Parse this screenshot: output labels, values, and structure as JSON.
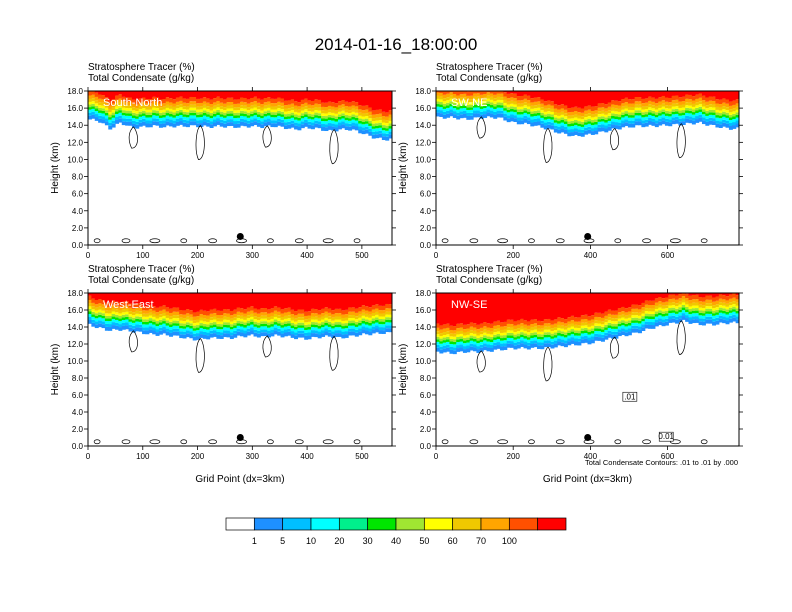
{
  "figure": {
    "title": "2014-01-16_18:00:00",
    "footer_note": "Total Condensate Contours: .01 to .01 by .000"
  },
  "colorbar": {
    "colors": [
      "#ffffff",
      "#1e90ff",
      "#00bfff",
      "#00ffff",
      "#00f08c",
      "#00e600",
      "#a0e632",
      "#ffff00",
      "#f0c800",
      "#ffa500",
      "#ff5000",
      "#ff0000"
    ],
    "labels": [
      "1",
      "5",
      "10",
      "20",
      "30",
      "40",
      "50",
      "60",
      "70",
      "100"
    ]
  },
  "chart_data": [
    {
      "type": "heatmap",
      "region_label": "South-North",
      "title_lines": [
        "Stratosphere Tracer   (%)",
        "Total Condensate   (g/kg)"
      ],
      "xlabel": "",
      "ylabel": "Height (km)",
      "xlim": [
        0,
        555
      ],
      "ylim": [
        0,
        18
      ],
      "xticks": [
        0,
        100,
        200,
        300,
        400,
        500
      ],
      "yticks": [
        0.0,
        2.0,
        4.0,
        6.0,
        8.0,
        10.0,
        12.0,
        14.0,
        16.0,
        18.0
      ],
      "marker_x": 278,
      "tracer_profile": {
        "x": [
          0,
          20,
          40,
          60,
          80,
          100,
          120,
          140,
          160,
          180,
          200,
          220,
          240,
          260,
          280,
          300,
          320,
          340,
          360,
          380,
          400,
          420,
          440,
          460,
          480,
          500,
          520,
          540,
          555
        ],
        "base_km": [
          15.6,
          15.4,
          14.5,
          15.2,
          14.6,
          14.7,
          14.8,
          14.7,
          14.8,
          14.8,
          14.8,
          14.7,
          14.8,
          14.7,
          14.7,
          14.8,
          14.7,
          14.8,
          14.6,
          14.4,
          14.6,
          14.5,
          14.2,
          14.4,
          14.4,
          14.0,
          13.5,
          13.2,
          13.3
        ]
      }
    },
    {
      "type": "heatmap",
      "region_label": "SW-NE",
      "title_lines": [
        "Stratosphere Tracer   (%)",
        "Total Condensate   (g/kg)"
      ],
      "xlabel": "",
      "ylabel": "Height (km)",
      "xlim": [
        0,
        785
      ],
      "ylim": [
        0,
        18
      ],
      "xticks": [
        0,
        200,
        400,
        600
      ],
      "yticks": [
        0.0,
        2.0,
        4.0,
        6.0,
        8.0,
        10.0,
        12.0,
        14.0,
        16.0,
        18.0
      ],
      "marker_x": 393,
      "tracer_profile": {
        "x": [
          0,
          40,
          80,
          120,
          160,
          200,
          240,
          280,
          320,
          360,
          400,
          440,
          480,
          520,
          560,
          600,
          640,
          680,
          720,
          760,
          785
        ],
        "base_km": [
          15.8,
          15.8,
          15.6,
          15.8,
          15.8,
          15.2,
          15.0,
          14.6,
          14.0,
          13.6,
          13.8,
          14.2,
          14.6,
          14.8,
          14.8,
          14.9,
          15.0,
          15.2,
          14.8,
          14.5,
          14.5
        ]
      }
    },
    {
      "type": "heatmap",
      "region_label": "West-East",
      "title_lines": [
        "Stratosphere Tracer   (%)",
        "Total Condensate   (g/kg)"
      ],
      "xlabel": "Grid Point (dx=3km)",
      "ylabel": "Height (km)",
      "xlim": [
        0,
        555
      ],
      "ylim": [
        0,
        18
      ],
      "xticks": [
        0,
        100,
        200,
        300,
        400,
        500
      ],
      "yticks": [
        0.0,
        2.0,
        4.0,
        6.0,
        8.0,
        10.0,
        12.0,
        14.0,
        16.0,
        18.0
      ],
      "marker_x": 278,
      "tracer_profile": {
        "x": [
          0,
          20,
          40,
          60,
          80,
          100,
          120,
          140,
          160,
          180,
          200,
          220,
          240,
          260,
          280,
          300,
          320,
          340,
          360,
          380,
          400,
          420,
          440,
          460,
          480,
          500,
          520,
          540,
          555
        ],
        "base_km": [
          15.2,
          14.8,
          14.5,
          14.6,
          14.4,
          14.2,
          14.0,
          14.0,
          13.8,
          13.6,
          13.4,
          13.6,
          13.6,
          13.6,
          13.8,
          13.9,
          13.7,
          13.9,
          13.8,
          13.6,
          13.5,
          13.7,
          13.8,
          13.6,
          13.8,
          14.0,
          14.1,
          14.2,
          14.2
        ]
      }
    },
    {
      "type": "heatmap",
      "region_label": "NW-SE",
      "title_lines": [
        "Stratosphere Tracer   (%)",
        "Total Condensate   (g/kg)"
      ],
      "xlabel": "Grid Point (dx=3km)",
      "ylabel": "Height (km)",
      "xlim": [
        0,
        785
      ],
      "ylim": [
        0,
        18
      ],
      "xticks": [
        0,
        200,
        400,
        600
      ],
      "yticks": [
        0.0,
        2.0,
        4.0,
        6.0,
        8.0,
        10.0,
        12.0,
        14.0,
        16.0,
        18.0
      ],
      "marker_x": 393,
      "contour_labels": [
        ".01",
        "0.01"
      ],
      "tracer_profile": {
        "x": [
          0,
          40,
          80,
          120,
          160,
          200,
          240,
          280,
          320,
          360,
          400,
          440,
          480,
          520,
          560,
          600,
          640,
          680,
          720,
          760,
          785
        ],
        "base_km": [
          12.0,
          11.8,
          12.0,
          12.0,
          12.2,
          12.4,
          12.4,
          12.4,
          12.6,
          12.8,
          13.0,
          13.4,
          13.8,
          14.2,
          14.8,
          15.2,
          15.6,
          15.2,
          15.2,
          15.4,
          15.4
        ]
      }
    }
  ]
}
